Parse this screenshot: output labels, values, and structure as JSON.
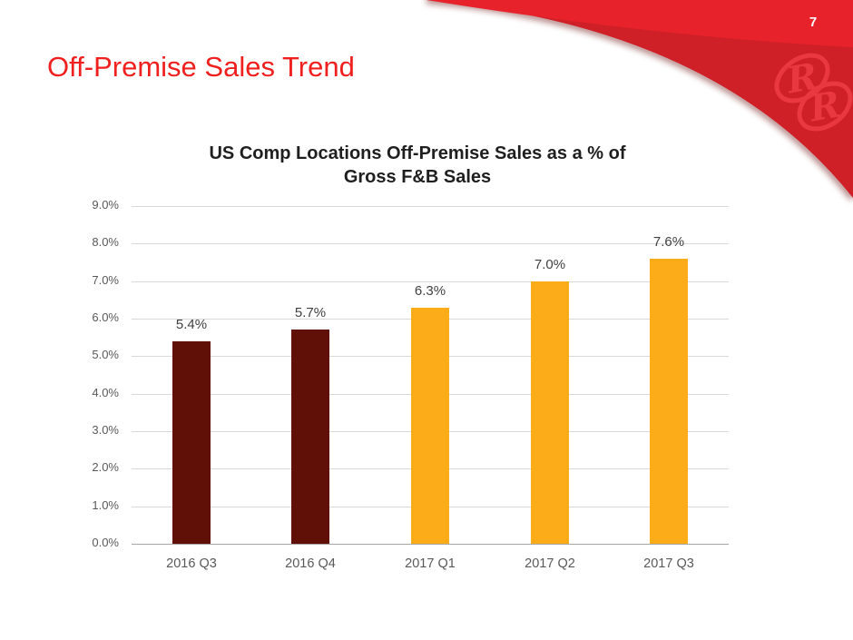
{
  "page": {
    "number": "7",
    "title": "Off-Premise Sales Trend",
    "title_color": "#EF201E"
  },
  "branding": {
    "logo": "red-robin-rr-logo",
    "banner_bright_red": "#E7222A",
    "banner_dark_red": "#D02027",
    "logo_glyph_color": "#E93840"
  },
  "chart_data": {
    "type": "bar",
    "title": "US Comp Locations Off-Premise Sales as a % of Gross F&B Sales",
    "title_lines": [
      "US Comp Locations Off-Premise Sales as a % of",
      "Gross F&B Sales"
    ],
    "categories": [
      "2016 Q3",
      "2016 Q4",
      "2017 Q1",
      "2017 Q2",
      "2017 Q3"
    ],
    "values": [
      5.4,
      5.7,
      6.3,
      7.0,
      7.6
    ],
    "value_labels": [
      "5.4%",
      "5.7%",
      "6.3%",
      "7.0%",
      "7.6%"
    ],
    "bar_colors": [
      "#611007",
      "#611007",
      "#FBAC18",
      "#FBAC18",
      "#FBAC18"
    ],
    "xlabel": "",
    "ylabel": "",
    "ylim": [
      0,
      9
    ],
    "ytick_step": 1,
    "ytick_labels": [
      "0.0%",
      "1.0%",
      "2.0%",
      "3.0%",
      "4.0%",
      "5.0%",
      "6.0%",
      "7.0%",
      "8.0%",
      "9.0%"
    ],
    "grid": true,
    "legend": "none",
    "gridline_color": "#D9D9D9",
    "axis_line_color": "#A6A6A6",
    "tick_label_color": "#595959",
    "value_label_color": "#404040"
  }
}
